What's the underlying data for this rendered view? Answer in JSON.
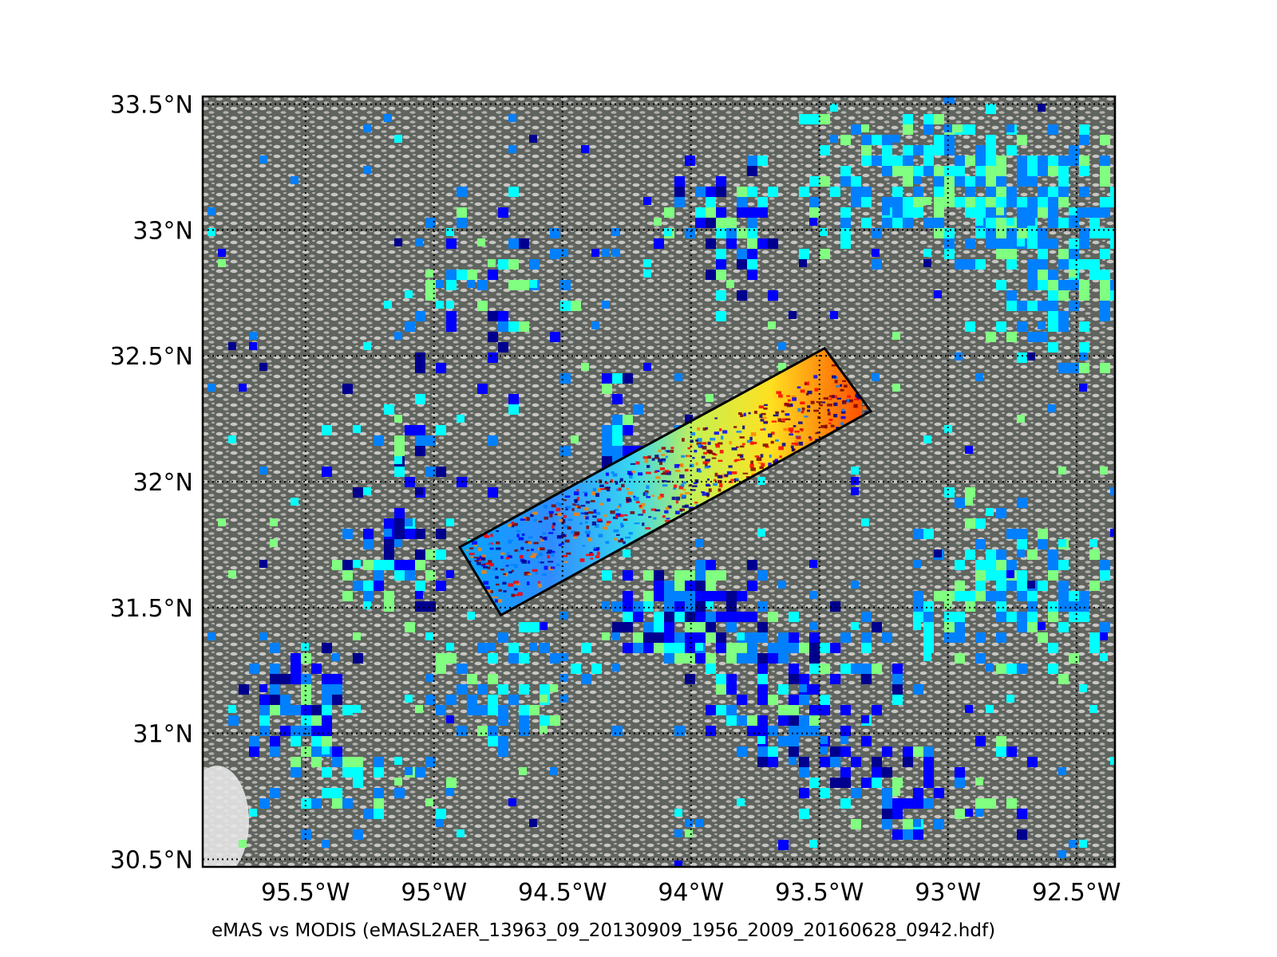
{
  "figure": {
    "caption": "eMAS vs MODIS (eMASL2AER_13963_09_20130909_1956_2009_20160628_0942.hdf)"
  },
  "map": {
    "lon_range": [
      -95.9,
      -92.35
    ],
    "lat_range": [
      30.47,
      33.53
    ],
    "lat_ticks": [
      {
        "value": 33.5,
        "label": "33.5°N"
      },
      {
        "value": 33.0,
        "label": "33°N"
      },
      {
        "value": 32.5,
        "label": "32.5°N"
      },
      {
        "value": 32.0,
        "label": "32°N"
      },
      {
        "value": 31.5,
        "label": "31.5°N"
      },
      {
        "value": 31.0,
        "label": "31°N"
      },
      {
        "value": 30.5,
        "label": "30.5°N"
      }
    ],
    "lon_ticks": [
      {
        "value": -95.5,
        "label": "95.5°W"
      },
      {
        "value": -95.0,
        "label": "95°W"
      },
      {
        "value": -94.5,
        "label": "94.5°W"
      },
      {
        "value": -94.0,
        "label": "94°W"
      },
      {
        "value": -93.5,
        "label": "93.5°W"
      },
      {
        "value": -93.0,
        "label": "93°W"
      },
      {
        "value": -92.5,
        "label": "92.5°W"
      }
    ],
    "gridlines": "dotted",
    "background": "true-color satellite imagery with broken cumulus clouds",
    "overlay_colormap": [
      "#00008f",
      "#0000ff",
      "#0080ff",
      "#00ffff",
      "#80ff80",
      "#ffff00",
      "#ff8000",
      "#ff0000",
      "#800000"
    ],
    "swath_corners": [
      {
        "lon": -94.9,
        "lat": 31.74
      },
      {
        "lon": -93.48,
        "lat": 32.53
      },
      {
        "lon": -93.3,
        "lat": 32.28
      },
      {
        "lon": -94.74,
        "lat": 31.47
      }
    ]
  }
}
